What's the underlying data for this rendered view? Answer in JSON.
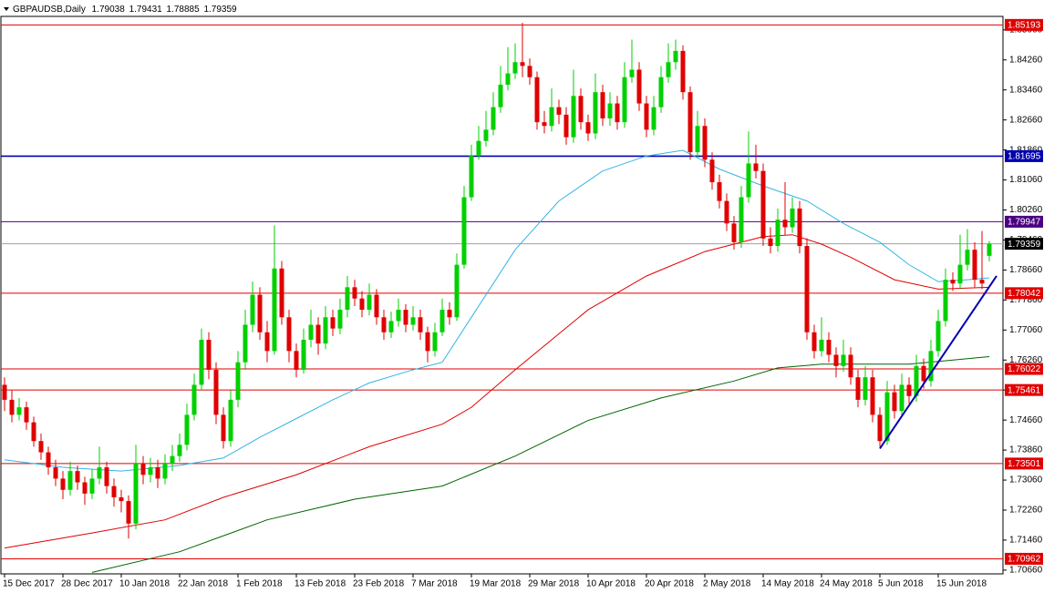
{
  "chart_data": {
    "type": "candlestick",
    "title": "GBPAUDSB,Daily",
    "xlim": [
      -0.5,
      136.875
    ],
    "ylim": [
      1.7056,
      1.8542
    ],
    "xticks": [
      {
        "value": 0,
        "label": "15 Dec 2017"
      },
      {
        "value": 8,
        "label": "28 Dec 2017"
      },
      {
        "value": 16,
        "label": "10 Jan 2018"
      },
      {
        "value": 24,
        "label": "22 Jan 2018"
      },
      {
        "value": 32,
        "label": "1 Feb 2018"
      },
      {
        "value": 40,
        "label": "13 Feb 2018"
      },
      {
        "value": 48,
        "label": "23 Feb 2018"
      },
      {
        "value": 56,
        "label": "7 Mar 2018"
      },
      {
        "value": 64,
        "label": "19 Mar 2018"
      },
      {
        "value": 72,
        "label": "29 Mar 2018"
      },
      {
        "value": 80,
        "label": "10 Apr 2018"
      },
      {
        "value": 88,
        "label": "20 Apr 2018"
      },
      {
        "value": 96,
        "label": "2 May 2018"
      },
      {
        "value": 104,
        "label": "14 May 2018"
      },
      {
        "value": 112,
        "label": "24 May 2018"
      },
      {
        "value": 120,
        "label": "5 Jun 2018"
      },
      {
        "value": 128,
        "label": "15 Jun 2018"
      }
    ],
    "yticks": [
      {
        "value": 1.8506,
        "label": "1.85060"
      },
      {
        "value": 1.8426,
        "label": "1.84260"
      },
      {
        "value": 1.8346,
        "label": "1.83460"
      },
      {
        "value": 1.8266,
        "label": "1.82660"
      },
      {
        "value": 1.8186,
        "label": "1.81860"
      },
      {
        "value": 1.8106,
        "label": "1.81060"
      },
      {
        "value": 1.8026,
        "label": "1.80260"
      },
      {
        "value": 1.7946,
        "label": "1.79460"
      },
      {
        "value": 1.7866,
        "label": "1.78660"
      },
      {
        "value": 1.7786,
        "label": "1.77860"
      },
      {
        "value": 1.7706,
        "label": "1.77060"
      },
      {
        "value": 1.7626,
        "label": "1.76260"
      },
      {
        "value": 1.7546,
        "label": "1.75460"
      },
      {
        "value": 1.7466,
        "label": "1.74660"
      },
      {
        "value": 1.7386,
        "label": "1.73860"
      },
      {
        "value": 1.7306,
        "label": "1.73060"
      },
      {
        "value": 1.7226,
        "label": "1.72260"
      },
      {
        "value": 1.7146,
        "label": "1.71460"
      },
      {
        "value": 1.7066,
        "label": "1.70660"
      }
    ],
    "up_color": "#00d000",
    "down_color": "#e00000",
    "bid_line_color": "#a0a0a0",
    "candles": [
      [
        1.756,
        1.758,
        1.749,
        1.752
      ],
      [
        1.752,
        1.7545,
        1.746,
        1.748
      ],
      [
        1.748,
        1.7525,
        1.7465,
        1.75
      ],
      [
        1.75,
        1.7515,
        1.744,
        1.746
      ],
      [
        1.746,
        1.7475,
        1.7395,
        1.741
      ],
      [
        1.741,
        1.743,
        1.736,
        1.738
      ],
      [
        1.738,
        1.7395,
        1.732,
        1.734
      ],
      [
        1.734,
        1.736,
        1.729,
        1.731
      ],
      [
        1.731,
        1.733,
        1.7255,
        1.728
      ],
      [
        1.728,
        1.7355,
        1.7265,
        1.733
      ],
      [
        1.733,
        1.7345,
        1.728,
        1.73
      ],
      [
        1.73,
        1.7315,
        1.724,
        1.727
      ],
      [
        1.727,
        1.7335,
        1.7255,
        1.731
      ],
      [
        1.731,
        1.7395,
        1.7295,
        1.734
      ],
      [
        1.734,
        1.7355,
        1.727,
        1.729
      ],
      [
        1.729,
        1.731,
        1.7235,
        1.726
      ],
      [
        1.726,
        1.728,
        1.722,
        1.725
      ],
      [
        1.725,
        1.7265,
        1.715,
        1.719
      ],
      [
        1.719,
        1.74,
        1.7175,
        1.735
      ],
      [
        1.735,
        1.737,
        1.7295,
        1.732
      ],
      [
        1.732,
        1.7365,
        1.73,
        1.734
      ],
      [
        1.734,
        1.736,
        1.7285,
        1.731
      ],
      [
        1.731,
        1.7375,
        1.7295,
        1.735
      ],
      [
        1.735,
        1.74,
        1.733,
        1.737
      ],
      [
        1.737,
        1.743,
        1.7355,
        1.74
      ],
      [
        1.74,
        1.751,
        1.7385,
        1.748
      ],
      [
        1.748,
        1.759,
        1.7465,
        1.756
      ],
      [
        1.756,
        1.771,
        1.7545,
        1.768
      ],
      [
        1.768,
        1.77,
        1.7575,
        1.76
      ],
      [
        1.76,
        1.762,
        1.7455,
        1.748
      ],
      [
        1.748,
        1.75,
        1.739,
        1.741
      ],
      [
        1.741,
        1.7545,
        1.7395,
        1.752
      ],
      [
        1.752,
        1.765,
        1.75,
        1.762
      ],
      [
        1.762,
        1.776,
        1.76,
        1.772
      ],
      [
        1.772,
        1.7835,
        1.77,
        1.78
      ],
      [
        1.78,
        1.782,
        1.768,
        1.77
      ],
      [
        1.77,
        1.773,
        1.762,
        1.765
      ],
      [
        1.765,
        1.7985,
        1.764,
        1.787
      ],
      [
        1.787,
        1.789,
        1.772,
        1.774
      ],
      [
        1.774,
        1.776,
        1.762,
        1.765
      ],
      [
        1.765,
        1.767,
        1.758,
        1.76
      ],
      [
        1.76,
        1.771,
        1.759,
        1.768
      ],
      [
        1.768,
        1.776,
        1.766,
        1.772
      ],
      [
        1.772,
        1.774,
        1.764,
        1.767
      ],
      [
        1.767,
        1.777,
        1.7655,
        1.774
      ],
      [
        1.774,
        1.776,
        1.769,
        1.771
      ],
      [
        1.771,
        1.779,
        1.7695,
        1.776
      ],
      [
        1.776,
        1.785,
        1.774,
        1.782
      ],
      [
        1.782,
        1.784,
        1.777,
        1.779
      ],
      [
        1.779,
        1.781,
        1.774,
        1.776
      ],
      [
        1.776,
        1.783,
        1.7745,
        1.78
      ],
      [
        1.78,
        1.7815,
        1.772,
        1.774
      ],
      [
        1.774,
        1.776,
        1.768,
        1.77
      ],
      [
        1.77,
        1.7755,
        1.7685,
        1.773
      ],
      [
        1.773,
        1.779,
        1.7715,
        1.776
      ],
      [
        1.776,
        1.7775,
        1.77,
        1.772
      ],
      [
        1.772,
        1.777,
        1.7705,
        1.774
      ],
      [
        1.774,
        1.776,
        1.768,
        1.77
      ],
      [
        1.77,
        1.7715,
        1.762,
        1.765
      ],
      [
        1.765,
        1.7725,
        1.7635,
        1.77
      ],
      [
        1.77,
        1.779,
        1.769,
        1.776
      ],
      [
        1.776,
        1.778,
        1.772,
        1.774
      ],
      [
        1.774,
        1.791,
        1.773,
        1.788
      ],
      [
        1.788,
        1.809,
        1.787,
        1.806
      ],
      [
        1.806,
        1.82,
        1.805,
        1.817
      ],
      [
        1.817,
        1.825,
        1.816,
        1.821
      ],
      [
        1.821,
        1.829,
        1.8195,
        1.824
      ],
      [
        1.824,
        1.834,
        1.8225,
        1.83
      ],
      [
        1.83,
        1.841,
        1.8285,
        1.836
      ],
      [
        1.836,
        1.846,
        1.8345,
        1.839
      ],
      [
        1.839,
        1.847,
        1.8375,
        1.842
      ],
      [
        1.842,
        1.8525,
        1.838,
        1.841
      ],
      [
        1.841,
        1.843,
        1.836,
        1.838
      ],
      [
        1.838,
        1.8395,
        1.824,
        1.826
      ],
      [
        1.826,
        1.829,
        1.823,
        1.825
      ],
      [
        1.825,
        1.835,
        1.8235,
        1.83
      ],
      [
        1.83,
        1.832,
        1.8255,
        1.828
      ],
      [
        1.828,
        1.83,
        1.82,
        1.822
      ],
      [
        1.822,
        1.84,
        1.8205,
        1.833
      ],
      [
        1.833,
        1.835,
        1.824,
        1.826
      ],
      [
        1.826,
        1.828,
        1.821,
        1.823
      ],
      [
        1.823,
        1.839,
        1.8215,
        1.834
      ],
      [
        1.834,
        1.836,
        1.825,
        1.827
      ],
      [
        1.827,
        1.834,
        1.825,
        1.831
      ],
      [
        1.831,
        1.833,
        1.824,
        1.826
      ],
      [
        1.826,
        1.842,
        1.8245,
        1.838
      ],
      [
        1.838,
        1.848,
        1.8365,
        1.84
      ],
      [
        1.84,
        1.842,
        1.829,
        1.831
      ],
      [
        1.831,
        1.833,
        1.822,
        1.824
      ],
      [
        1.824,
        1.833,
        1.8225,
        1.83
      ],
      [
        1.83,
        1.841,
        1.8285,
        1.838
      ],
      [
        1.838,
        1.847,
        1.8365,
        1.842
      ],
      [
        1.842,
        1.848,
        1.84,
        1.845
      ],
      [
        1.845,
        1.8465,
        1.832,
        1.834
      ],
      [
        1.834,
        1.8355,
        1.816,
        1.818
      ],
      [
        1.818,
        1.829,
        1.8165,
        1.825
      ],
      [
        1.825,
        1.827,
        1.814,
        1.816
      ],
      [
        1.816,
        1.818,
        1.808,
        1.81
      ],
      [
        1.81,
        1.812,
        1.803,
        1.805
      ],
      [
        1.805,
        1.807,
        1.797,
        1.799
      ],
      [
        1.799,
        1.801,
        1.792,
        1.794
      ],
      [
        1.794,
        1.809,
        1.7925,
        1.806
      ],
      [
        1.806,
        1.8235,
        1.8045,
        1.815
      ],
      [
        1.815,
        1.82,
        1.811,
        1.813
      ],
      [
        1.813,
        1.815,
        1.793,
        1.795
      ],
      [
        1.795,
        1.798,
        1.791,
        1.793
      ],
      [
        1.793,
        1.803,
        1.7915,
        1.8
      ],
      [
        1.8,
        1.81,
        1.796,
        1.798
      ],
      [
        1.798,
        1.806,
        1.7965,
        1.803
      ],
      [
        1.803,
        1.805,
        1.791,
        1.793
      ],
      [
        1.793,
        1.795,
        1.768,
        1.77
      ],
      [
        1.77,
        1.772,
        1.763,
        1.765
      ],
      [
        1.765,
        1.774,
        1.7635,
        1.768
      ],
      [
        1.768,
        1.77,
        1.762,
        1.764
      ],
      [
        1.764,
        1.766,
        1.758,
        1.761
      ],
      [
        1.761,
        1.768,
        1.7595,
        1.764
      ],
      [
        1.764,
        1.766,
        1.756,
        1.758
      ],
      [
        1.758,
        1.76,
        1.75,
        1.752
      ],
      [
        1.752,
        1.761,
        1.7505,
        1.758
      ],
      [
        1.758,
        1.76,
        1.746,
        1.748
      ],
      [
        1.748,
        1.75,
        1.7395,
        1.741
      ],
      [
        1.741,
        1.757,
        1.74,
        1.754
      ],
      [
        1.754,
        1.756,
        1.747,
        1.749
      ],
      [
        1.749,
        1.759,
        1.7475,
        1.756
      ],
      [
        1.756,
        1.758,
        1.751,
        1.753
      ],
      [
        1.753,
        1.764,
        1.7515,
        1.761
      ],
      [
        1.761,
        1.763,
        1.755,
        1.757
      ],
      [
        1.757,
        1.768,
        1.7555,
        1.765
      ],
      [
        1.765,
        1.776,
        1.7635,
        1.773
      ],
      [
        1.773,
        1.787,
        1.7715,
        1.784
      ],
      [
        1.784,
        1.786,
        1.781,
        1.783
      ],
      [
        1.783,
        1.796,
        1.7815,
        1.788
      ],
      [
        1.788,
        1.7975,
        1.7865,
        1.792
      ],
      [
        1.792,
        1.794,
        1.782,
        1.784
      ],
      [
        1.784,
        1.797,
        1.7815,
        1.783
      ],
      [
        1.79038,
        1.79431,
        1.78885,
        1.79359
      ]
    ],
    "series": [
      {
        "color": "#33b5e5",
        "x": [
          0,
          8,
          16,
          24,
          30,
          35,
          40,
          45,
          50,
          56,
          60,
          64,
          70,
          76,
          82,
          88,
          93,
          98,
          104,
          110,
          115,
          120,
          124,
          128,
          132,
          135
        ],
        "values": [
          1.736,
          1.734,
          1.733,
          1.7345,
          1.7365,
          1.742,
          1.747,
          1.752,
          1.7565,
          1.76,
          1.762,
          1.774,
          1.792,
          1.805,
          1.813,
          1.817,
          1.8185,
          1.8135,
          1.809,
          1.805,
          1.799,
          1.794,
          1.788,
          1.7835,
          1.784,
          1.7845
        ]
      },
      {
        "color": "#e00000",
        "x": [
          0,
          12,
          22,
          30,
          40,
          50,
          60,
          64,
          70,
          80,
          88,
          96,
          104,
          108,
          112,
          116,
          122,
          128,
          135
        ],
        "values": [
          1.7125,
          1.7165,
          1.72,
          1.726,
          1.732,
          1.7395,
          1.7455,
          1.75,
          1.76,
          1.776,
          1.785,
          1.7915,
          1.7955,
          1.796,
          1.7935,
          1.79,
          1.784,
          1.7815,
          1.782
        ]
      },
      {
        "color": "#006400",
        "x": [
          12,
          24,
          36,
          48,
          60,
          70,
          80,
          90,
          100,
          106,
          112,
          124,
          135
        ],
        "values": [
          1.706,
          1.7115,
          1.72,
          1.7255,
          1.729,
          1.737,
          1.7465,
          1.7525,
          1.757,
          1.7605,
          1.7615,
          1.7615,
          1.7635
        ]
      }
    ],
    "trendline": {
      "color": "#0000b0",
      "x": [
        120,
        136
      ],
      "values": [
        1.739,
        1.785
      ]
    },
    "levels": [
      {
        "value": 1.85193,
        "color": "#e00000"
      },
      {
        "value": 1.81695,
        "color": "#0000b0"
      },
      {
        "value": 1.79947,
        "color": "#4b0082"
      },
      {
        "value": 1.78042,
        "color": "#e00000"
      },
      {
        "value": 1.76022,
        "color": "#e00000"
      },
      {
        "value": 1.75461,
        "color": "#e00000"
      },
      {
        "value": 1.73501,
        "color": "#e00000"
      },
      {
        "value": 1.70962,
        "color": "#e00000"
      }
    ]
  }
}
